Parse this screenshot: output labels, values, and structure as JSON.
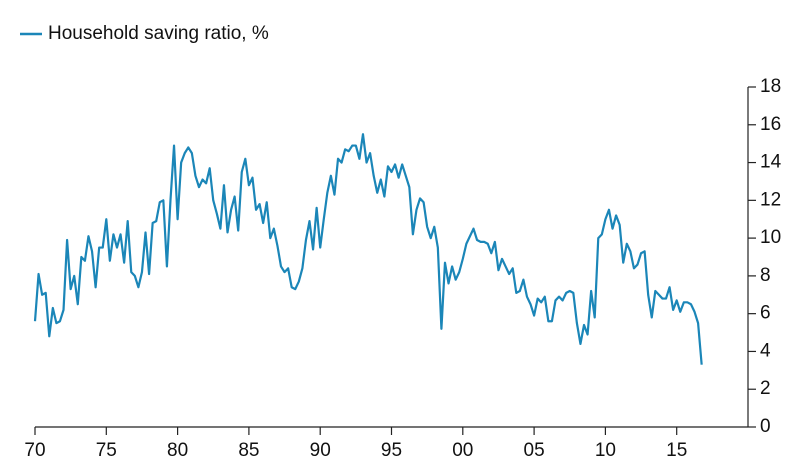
{
  "chart_data": {
    "type": "line",
    "x": [
      1970,
      1970.25,
      1970.5,
      1970.75,
      1971,
      1971.25,
      1971.5,
      1971.75,
      1972,
      1972.25,
      1972.5,
      1972.75,
      1973,
      1973.25,
      1973.5,
      1973.75,
      1974,
      1974.25,
      1974.5,
      1974.75,
      1975,
      1975.25,
      1975.5,
      1975.75,
      1976,
      1976.25,
      1976.5,
      1976.75,
      1977,
      1977.25,
      1977.5,
      1977.75,
      1978,
      1978.25,
      1978.5,
      1978.75,
      1979,
      1979.25,
      1979.5,
      1979.75,
      1980,
      1980.25,
      1980.5,
      1980.75,
      1981,
      1981.25,
      1981.5,
      1981.75,
      1982,
      1982.25,
      1982.5,
      1982.75,
      1983,
      1983.25,
      1983.5,
      1983.75,
      1984,
      1984.25,
      1984.5,
      1984.75,
      1985,
      1985.25,
      1985.5,
      1985.75,
      1986,
      1986.25,
      1986.5,
      1986.75,
      1987,
      1987.25,
      1987.5,
      1987.75,
      1988,
      1988.25,
      1988.5,
      1988.75,
      1989,
      1989.25,
      1989.5,
      1989.75,
      1990,
      1990.25,
      1990.5,
      1990.75,
      1991,
      1991.25,
      1991.5,
      1991.75,
      1992,
      1992.25,
      1992.5,
      1992.75,
      1993,
      1993.25,
      1993.5,
      1993.75,
      1994,
      1994.25,
      1994.5,
      1994.75,
      1995,
      1995.25,
      1995.5,
      1995.75,
      1996,
      1996.25,
      1996.5,
      1996.75,
      1997,
      1997.25,
      1997.5,
      1997.75,
      1998,
      1998.25,
      1998.5,
      1998.75,
      1999,
      1999.25,
      1999.5,
      1999.75,
      2000,
      2000.25,
      2000.5,
      2000.75,
      2001,
      2001.25,
      2001.5,
      2001.75,
      2002,
      2002.25,
      2002.5,
      2002.75,
      2003,
      2003.25,
      2003.5,
      2003.75,
      2004,
      2004.25,
      2004.5,
      2004.75,
      2005,
      2005.25,
      2005.5,
      2005.75,
      2006,
      2006.25,
      2006.5,
      2006.75,
      2007,
      2007.25,
      2007.5,
      2007.75,
      2008,
      2008.25,
      2008.5,
      2008.75,
      2009,
      2009.25,
      2009.5,
      2009.75,
      2010,
      2010.25,
      2010.5,
      2010.75,
      2011,
      2011.25,
      2011.5,
      2011.75,
      2012,
      2012.25,
      2012.5,
      2012.75,
      2013,
      2013.25,
      2013.5,
      2013.75,
      2014,
      2014.25,
      2014.5,
      2014.75,
      2015,
      2015.25,
      2015.5,
      2015.75,
      2016,
      2016.25,
      2016.5,
      2016.75
    ],
    "series": [
      {
        "name": "Household saving ratio, %",
        "color": "#1b86b8",
        "values": [
          5.6,
          8.1,
          7.0,
          7.1,
          4.8,
          6.3,
          5.5,
          5.6,
          6.2,
          9.9,
          7.3,
          8.0,
          6.5,
          9.0,
          8.8,
          10.1,
          9.3,
          7.4,
          9.5,
          9.5,
          11.0,
          8.8,
          10.2,
          9.5,
          10.2,
          8.7,
          10.9,
          8.2,
          8.0,
          7.4,
          8.2,
          10.3,
          8.1,
          10.8,
          10.9,
          11.9,
          12.0,
          8.5,
          12.0,
          14.9,
          11.0,
          14.0,
          14.5,
          14.8,
          14.5,
          13.3,
          12.7,
          13.1,
          12.9,
          13.7,
          12.0,
          11.3,
          10.5,
          12.8,
          10.3,
          11.5,
          12.2,
          10.4,
          13.5,
          14.2,
          12.8,
          13.2,
          11.5,
          11.8,
          10.8,
          11.9,
          10.0,
          10.5,
          9.6,
          8.5,
          8.2,
          8.4,
          7.4,
          7.3,
          7.7,
          8.4,
          9.9,
          10.9,
          9.4,
          11.6,
          9.5,
          11.0,
          12.4,
          13.3,
          12.3,
          14.2,
          14.0,
          14.7,
          14.6,
          14.9,
          14.9,
          14.2,
          15.5,
          14.0,
          14.5,
          13.3,
          12.4,
          13.1,
          12.2,
          13.8,
          13.5,
          13.9,
          13.2,
          13.9,
          13.3,
          12.7,
          10.2,
          11.5,
          12.1,
          11.9,
          10.6,
          10.0,
          10.6,
          9.5,
          5.2,
          8.7,
          7.6,
          8.5,
          7.8,
          8.2,
          8.9,
          9.7,
          10.1,
          10.5,
          9.9,
          9.8,
          9.8,
          9.7,
          9.2,
          9.8,
          8.3,
          8.9,
          8.5,
          8.1,
          8.4,
          7.1,
          7.2,
          7.8,
          6.9,
          6.5,
          5.9,
          6.8,
          6.6,
          6.9,
          5.6,
          5.6,
          6.7,
          6.9,
          6.7,
          7.1,
          7.2,
          7.1,
          5.5,
          4.4,
          5.4,
          4.9,
          7.2,
          5.8,
          10.0,
          10.2,
          11.0,
          11.5,
          10.5,
          11.2,
          10.7,
          8.7,
          9.7,
          9.3,
          8.4,
          8.6,
          9.2,
          9.3,
          7.0,
          5.8,
          7.2,
          7.0,
          6.8,
          6.8,
          7.4,
          6.2,
          6.7,
          6.1,
          6.6,
          6.6,
          6.5,
          6.1,
          5.5,
          3.3
        ]
      }
    ],
    "xlim": [
      1970,
      2020
    ],
    "xticks": [
      {
        "value": 1970,
        "label": "70"
      },
      {
        "value": 1975,
        "label": "75"
      },
      {
        "value": 1980,
        "label": "80"
      },
      {
        "value": 1985,
        "label": "85"
      },
      {
        "value": 1990,
        "label": "90"
      },
      {
        "value": 1995,
        "label": "95"
      },
      {
        "value": 2000,
        "label": "00"
      },
      {
        "value": 2005,
        "label": "05"
      },
      {
        "value": 2010,
        "label": "10"
      },
      {
        "value": 2015,
        "label": "15"
      }
    ],
    "ylim": [
      0,
      18
    ],
    "yticks": [
      0,
      2,
      4,
      6,
      8,
      10,
      12,
      14,
      16,
      18
    ],
    "grid": false,
    "legend": "top-left"
  }
}
